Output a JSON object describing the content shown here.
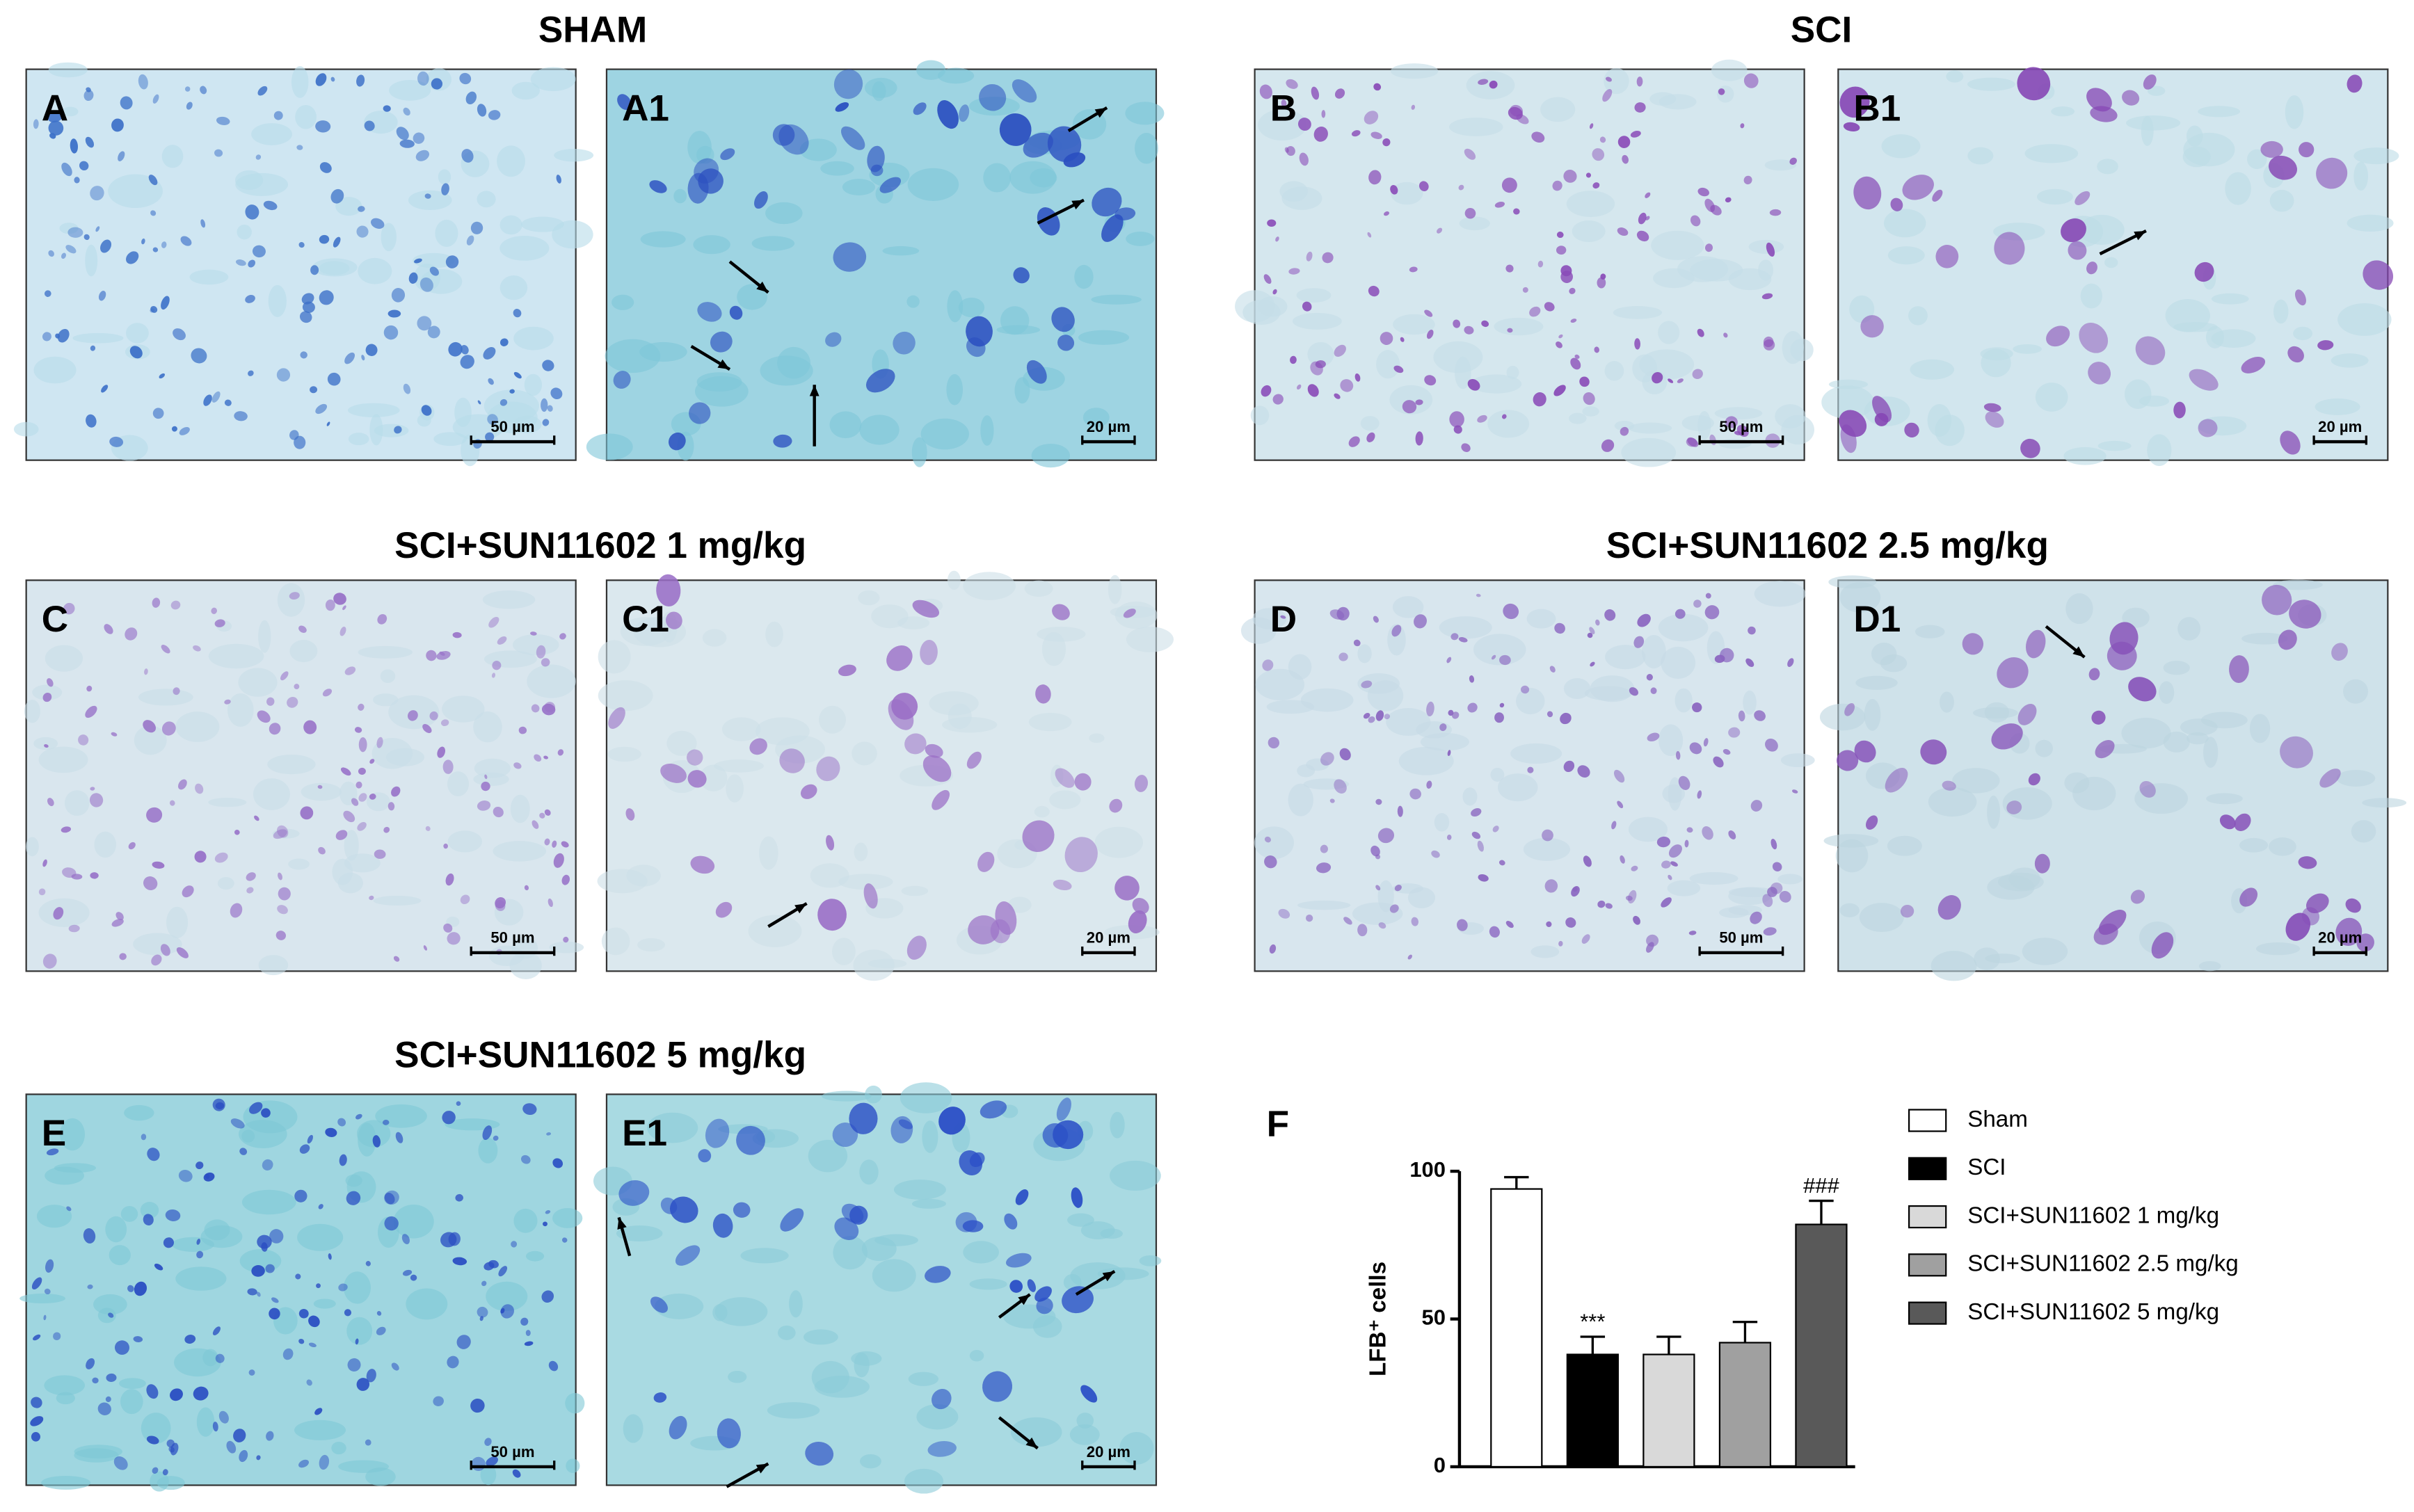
{
  "groups": [
    {
      "title": "SHAM"
    },
    {
      "title": "SCI"
    },
    {
      "title": "SCI+SUN11602 1 mg/kg"
    },
    {
      "title": "SCI+SUN11602 2.5 mg/kg"
    },
    {
      "title": "SCI+SUN11602 5 mg/kg"
    }
  ],
  "panels": [
    {
      "label": "A",
      "scale_bar": "50 µm"
    },
    {
      "label": "A1",
      "scale_bar": "20 µm"
    },
    {
      "label": "B",
      "scale_bar": "50 µm"
    },
    {
      "label": "B1",
      "scale_bar": "20 µm"
    },
    {
      "label": "C",
      "scale_bar": "50 µm"
    },
    {
      "label": "C1",
      "scale_bar": "20 µm"
    },
    {
      "label": "D",
      "scale_bar": "50 µm"
    },
    {
      "label": "D1",
      "scale_bar": "20 µm"
    },
    {
      "label": "E",
      "scale_bar": "50 µm"
    },
    {
      "label": "E1",
      "scale_bar": "20 µm"
    }
  ],
  "chart_data": {
    "type": "bar",
    "panel_label": "F",
    "y_label": "LFB⁺ cells",
    "categories": [
      "Sham",
      "SCI",
      "SCI+SUN11602 1 mg/kg",
      "SCI+SUN11602 2.5 mg/kg",
      "SCI+SUN11602 5 mg/kg"
    ],
    "values": [
      94,
      38,
      38,
      42,
      82
    ],
    "errors": [
      4,
      6,
      6,
      7,
      8
    ],
    "colors": [
      "#ffffff",
      "#000000",
      "#d9d9d9",
      "#a0a0a0",
      "#595959"
    ],
    "annotations": [
      null,
      "***",
      null,
      null,
      "###"
    ],
    "ylim": [
      0,
      100
    ],
    "yticks": [
      0,
      50,
      100
    ],
    "legend": "right"
  }
}
